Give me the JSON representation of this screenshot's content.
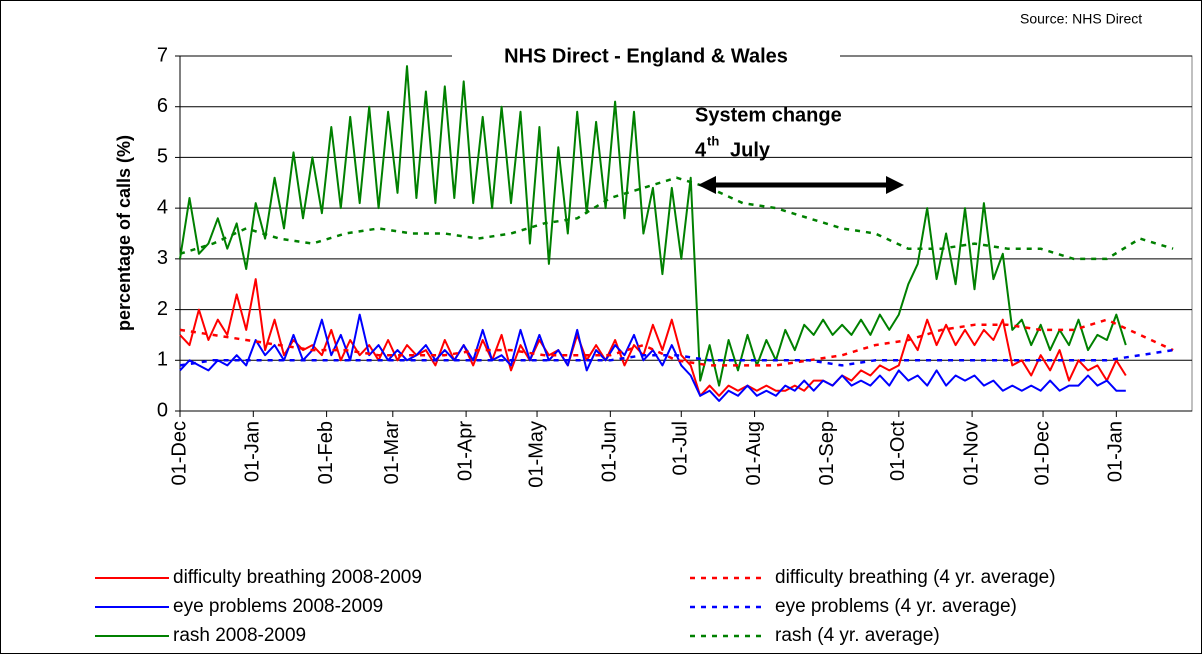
{
  "chart_data": {
    "type": "line",
    "title": "NHS Direct - England & Wales",
    "source": "Source: NHS Direct",
    "y_label": "percentage of calls (%)",
    "annotation": {
      "line1": "System change",
      "day": "4",
      "suffix": "th",
      "month": "July"
    },
    "x": [
      0,
      4,
      8,
      12,
      16,
      20,
      24,
      28,
      32,
      36,
      40,
      44,
      48,
      52,
      56,
      60,
      64,
      68,
      72,
      76,
      80,
      84,
      88,
      92,
      96,
      100,
      104,
      108,
      112,
      116,
      120,
      124,
      128,
      132,
      136,
      140,
      144,
      148,
      152,
      156,
      160,
      164,
      168,
      172,
      176,
      180,
      184,
      188,
      192,
      196,
      200,
      204,
      208,
      212,
      216,
      220,
      224,
      228,
      232,
      236,
      240,
      244,
      248,
      252,
      256,
      260,
      264,
      268,
      272,
      276,
      280,
      284,
      288,
      292,
      296,
      300,
      304,
      308,
      312,
      316,
      320,
      324,
      328,
      332,
      336,
      340,
      344,
      348,
      352,
      356,
      360,
      364,
      368,
      372,
      376,
      380,
      384,
      388,
      392,
      396,
      400
    ],
    "xlim": [
      0,
      428
    ],
    "xticks": [
      {
        "value": 0,
        "label": "01-Dec"
      },
      {
        "value": 31,
        "label": "01-Jan"
      },
      {
        "value": 62,
        "label": "01-Feb"
      },
      {
        "value": 90,
        "label": "01-Mar"
      },
      {
        "value": 121,
        "label": "01-Apr"
      },
      {
        "value": 151,
        "label": "01-May"
      },
      {
        "value": 182,
        "label": "01-Jun"
      },
      {
        "value": 212,
        "label": "01-Jul"
      },
      {
        "value": 243,
        "label": "01-Aug"
      },
      {
        "value": 274,
        "label": "01-Sep"
      },
      {
        "value": 304,
        "label": "01-Oct"
      },
      {
        "value": 335,
        "label": "01-Nov"
      },
      {
        "value": 365,
        "label": "01-Dec"
      },
      {
        "value": 396,
        "label": "01-Jan"
      }
    ],
    "ylim": [
      0,
      7
    ],
    "yticks": [
      0,
      1,
      2,
      3,
      4,
      5,
      6,
      7
    ],
    "grid": true,
    "series": [
      {
        "name": "difficulty breathing 2008-2009",
        "color": "#ff0000",
        "dashed": false,
        "values": [
          1.5,
          1.3,
          2.0,
          1.4,
          1.8,
          1.5,
          2.3,
          1.6,
          2.6,
          1.2,
          1.8,
          1.1,
          1.4,
          1.2,
          1.3,
          1.1,
          1.6,
          1.0,
          1.4,
          1.1,
          1.3,
          1.0,
          1.4,
          1.0,
          1.3,
          1.1,
          1.2,
          0.9,
          1.4,
          1.0,
          1.3,
          0.9,
          1.4,
          1.0,
          1.5,
          0.8,
          1.3,
          1.0,
          1.4,
          1.1,
          1.2,
          0.9,
          1.5,
          1.0,
          1.3,
          1.0,
          1.4,
          0.9,
          1.3,
          1.1,
          1.7,
          1.2,
          1.8,
          1.1,
          0.9,
          0.3,
          0.5,
          0.3,
          0.5,
          0.4,
          0.5,
          0.4,
          0.5,
          0.4,
          0.4,
          0.5,
          0.4,
          0.6,
          0.6,
          0.5,
          0.7,
          0.6,
          0.8,
          0.7,
          0.9,
          0.8,
          0.9,
          1.5,
          1.2,
          1.8,
          1.3,
          1.7,
          1.3,
          1.6,
          1.3,
          1.6,
          1.4,
          1.8,
          0.9,
          1.0,
          0.7,
          1.1,
          0.8,
          1.2,
          0.6,
          1.0,
          0.8,
          0.9,
          0.6,
          1.0,
          0.7
        ]
      },
      {
        "name": "eye problems 2008-2009",
        "color": "#0000ff",
        "dashed": false,
        "values": [
          0.8,
          1.0,
          0.9,
          0.8,
          1.0,
          0.9,
          1.1,
          0.9,
          1.4,
          1.1,
          1.3,
          1.0,
          1.5,
          1.0,
          1.2,
          1.8,
          1.1,
          1.5,
          1.0,
          1.9,
          1.1,
          1.3,
          1.0,
          1.2,
          1.0,
          1.1,
          1.3,
          1.0,
          1.2,
          1.0,
          1.3,
          1.0,
          1.6,
          1.0,
          1.1,
          0.9,
          1.6,
          1.0,
          1.5,
          1.0,
          1.2,
          0.9,
          1.6,
          0.8,
          1.2,
          1.0,
          1.3,
          1.1,
          1.5,
          1.0,
          1.2,
          0.9,
          1.3,
          0.9,
          0.7,
          0.3,
          0.4,
          0.2,
          0.4,
          0.3,
          0.5,
          0.3,
          0.4,
          0.3,
          0.5,
          0.4,
          0.6,
          0.4,
          0.6,
          0.5,
          0.7,
          0.5,
          0.6,
          0.5,
          0.7,
          0.5,
          0.8,
          0.6,
          0.7,
          0.5,
          0.8,
          0.5,
          0.7,
          0.6,
          0.7,
          0.5,
          0.6,
          0.4,
          0.5,
          0.4,
          0.5,
          0.4,
          0.6,
          0.4,
          0.5,
          0.5,
          0.7,
          0.5,
          0.6,
          0.4,
          0.4
        ]
      },
      {
        "name": "rash 2008-2009",
        "color": "#008000",
        "dashed": false,
        "values": [
          3.0,
          4.2,
          3.1,
          3.3,
          3.8,
          3.2,
          3.7,
          2.8,
          4.1,
          3.4,
          4.6,
          3.6,
          5.1,
          3.8,
          5.0,
          3.9,
          5.6,
          4.0,
          5.8,
          4.1,
          6.0,
          4.0,
          5.9,
          4.3,
          6.8,
          4.2,
          6.3,
          4.1,
          6.4,
          4.2,
          6.5,
          4.1,
          5.8,
          4.0,
          6.0,
          4.1,
          5.9,
          3.3,
          5.6,
          2.9,
          5.2,
          3.5,
          5.9,
          3.9,
          5.7,
          4.0,
          6.1,
          3.8,
          5.9,
          3.5,
          4.4,
          2.7,
          4.4,
          3.0,
          4.6,
          0.6,
          1.3,
          0.5,
          1.4,
          0.8,
          1.5,
          0.9,
          1.4,
          1.0,
          1.6,
          1.2,
          1.7,
          1.5,
          1.8,
          1.5,
          1.7,
          1.5,
          1.8,
          1.5,
          1.9,
          1.6,
          1.9,
          2.5,
          2.9,
          4.0,
          2.6,
          3.5,
          2.5,
          4.0,
          2.4,
          4.1,
          2.6,
          3.1,
          1.6,
          1.8,
          1.3,
          1.7,
          1.2,
          1.6,
          1.3,
          1.8,
          1.2,
          1.5,
          1.4,
          1.9,
          1.3
        ]
      },
      {
        "name": "difficulty breathing (4 yr. average)",
        "color": "#ff0000",
        "dashed": true,
        "x": [
          0,
          14,
          28,
          42,
          56,
          70,
          84,
          98,
          112,
          126,
          140,
          154,
          168,
          182,
          196,
          210,
          224,
          238,
          252,
          266,
          280,
          294,
          308,
          322,
          336,
          350,
          364,
          378,
          392,
          406,
          420
        ],
        "values": [
          1.6,
          1.5,
          1.4,
          1.3,
          1.2,
          1.2,
          1.1,
          1.1,
          1.1,
          1.2,
          1.2,
          1.1,
          1.1,
          1.1,
          1.3,
          1.0,
          0.9,
          0.9,
          0.9,
          1.0,
          1.1,
          1.3,
          1.4,
          1.6,
          1.7,
          1.7,
          1.6,
          1.6,
          1.8,
          1.5,
          1.2
        ]
      },
      {
        "name": "eye problems (4 yr. average)",
        "color": "#0000ff",
        "dashed": true,
        "x": [
          0,
          14,
          28,
          42,
          56,
          70,
          84,
          98,
          112,
          126,
          140,
          154,
          168,
          182,
          196,
          210,
          224,
          238,
          252,
          266,
          280,
          294,
          308,
          322,
          336,
          350,
          364,
          378,
          392,
          406,
          420
        ],
        "values": [
          0.9,
          1.0,
          1.0,
          1.0,
          1.0,
          1.0,
          1.0,
          1.0,
          1.0,
          1.0,
          1.0,
          1.0,
          1.0,
          1.0,
          1.1,
          1.1,
          1.0,
          1.0,
          1.0,
          1.0,
          0.9,
          1.0,
          1.0,
          1.0,
          1.0,
          1.0,
          1.0,
          1.0,
          1.0,
          1.1,
          1.2
        ]
      },
      {
        "name": "rash (4 yr. average)",
        "color": "#008000",
        "dashed": true,
        "x": [
          0,
          14,
          28,
          42,
          56,
          70,
          84,
          98,
          112,
          126,
          140,
          154,
          168,
          182,
          196,
          210,
          224,
          238,
          252,
          266,
          280,
          294,
          308,
          322,
          336,
          350,
          364,
          378,
          392,
          406,
          420
        ],
        "values": [
          3.1,
          3.3,
          3.6,
          3.4,
          3.3,
          3.5,
          3.6,
          3.5,
          3.5,
          3.4,
          3.5,
          3.7,
          3.8,
          4.2,
          4.4,
          4.6,
          4.4,
          4.1,
          4.0,
          3.8,
          3.6,
          3.5,
          3.2,
          3.2,
          3.3,
          3.2,
          3.2,
          3.0,
          3.0,
          3.4,
          3.2
        ]
      }
    ]
  }
}
